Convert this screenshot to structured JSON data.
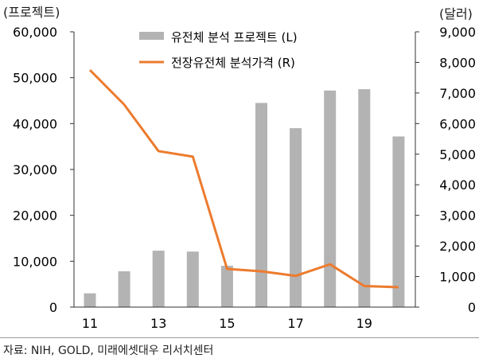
{
  "units": {
    "left": "(프로젝트)",
    "right": "(달러)"
  },
  "source": "자료: NIH, GOLD, 미래에셋대우 리서치센터",
  "chart_data": {
    "type": "bar+line",
    "x_tick_labels": [
      "11",
      "13",
      "15",
      "17",
      "19"
    ],
    "years": [
      2011,
      2012,
      2013,
      2014,
      2015,
      2016,
      2017,
      2018,
      2019,
      2020
    ],
    "series": [
      {
        "name": "유전체 분석 프로젝트 (L)",
        "type": "bar",
        "axis": "left",
        "color": "#b3b3b3",
        "values": [
          3000,
          7800,
          12300,
          12100,
          9000,
          44500,
          39000,
          47200,
          47500,
          37200
        ]
      },
      {
        "name": "전장유전체 분석가격 (R)",
        "type": "line",
        "axis": "right",
        "color": "#ec7b2e",
        "values": [
          7750,
          6620,
          5100,
          4920,
          1250,
          1170,
          1020,
          1400,
          690,
          650
        ]
      }
    ],
    "y_left": {
      "min": 0,
      "max": 60000,
      "ticks": [
        "0",
        "10,000",
        "20,000",
        "30,000",
        "40,000",
        "50,000",
        "60,000"
      ]
    },
    "y_right": {
      "min": 0,
      "max": 9000,
      "ticks": [
        "0",
        "1,000",
        "2,000",
        "3,000",
        "4,000",
        "5,000",
        "6,000",
        "7,000",
        "8,000",
        "9,000"
      ]
    },
    "legend_position": "top-center",
    "grid": false
  }
}
